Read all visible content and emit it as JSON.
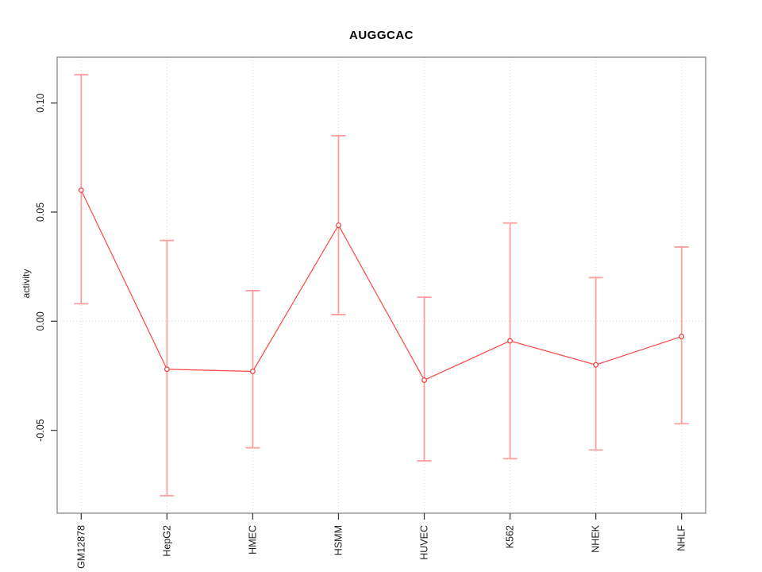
{
  "chart_data": {
    "type": "line",
    "title": "AUGGCAC",
    "xlabel": "",
    "ylabel": "activity",
    "categories": [
      "GM12878",
      "HepG2",
      "HMEC",
      "HSMM",
      "HUVEC",
      "K562",
      "NHEK",
      "NHLF"
    ],
    "series": [
      {
        "name": "activity",
        "values": [
          0.06,
          -0.022,
          -0.023,
          0.044,
          -0.027,
          -0.009,
          -0.02,
          -0.007
        ],
        "error_upper": [
          0.113,
          0.037,
          0.014,
          0.085,
          0.011,
          0.045,
          0.02,
          0.034
        ],
        "error_lower": [
          0.008,
          -0.08,
          -0.058,
          0.003,
          -0.064,
          -0.063,
          -0.059,
          -0.047
        ]
      }
    ],
    "yticks": [
      {
        "value": -0.05,
        "label": "-0.05"
      },
      {
        "value": 0.0,
        "label": "0.00"
      },
      {
        "value": 0.05,
        "label": "0.05"
      },
      {
        "value": 0.1,
        "label": "0.10"
      }
    ],
    "ylim": [
      -0.088,
      0.121
    ],
    "grid": {
      "horizontal_zero_line": true,
      "vertical_category_lines": true
    },
    "legend_position": "none",
    "marker": "open-circle",
    "colors": {
      "error_bar": "#ff9e9e",
      "line": "#ff4545",
      "marker_stroke": "#ee3a3a",
      "marker_fill": "#ffffff",
      "grid": "#d9d9d9",
      "frame": "#878787",
      "tick": "#3f3f3f",
      "text": "#1c1c1c"
    }
  }
}
